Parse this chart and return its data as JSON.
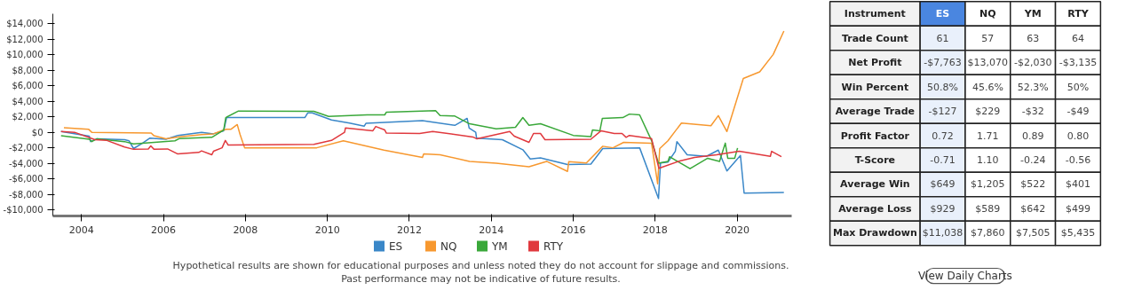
{
  "chart_data": [
    {
      "type": "line",
      "legend": "bottom",
      "grid": false,
      "xlim": [
        2003.3,
        2021.33
      ],
      "ylim": [
        -10800,
        15300
      ],
      "xticks": [
        2004,
        2006,
        2008,
        2010,
        2012,
        2014,
        2016,
        2018,
        2020
      ],
      "yticks": [
        {
          "value": -10000,
          "label": "-$10,000"
        },
        {
          "value": -8000,
          "label": "-$8,000"
        },
        {
          "value": -6000,
          "label": "-$6,000"
        },
        {
          "value": -4000,
          "label": "-$4,000"
        },
        {
          "value": -2000,
          "label": "-$2,000"
        },
        {
          "value": 0,
          "label": "$0"
        },
        {
          "value": 2000,
          "label": "$2,000"
        },
        {
          "value": 4000,
          "label": "$4,000"
        },
        {
          "value": 6000,
          "label": "$6,000"
        },
        {
          "value": 8000,
          "label": "$8,000"
        },
        {
          "value": 10000,
          "label": "$10,000"
        },
        {
          "value": 12000,
          "label": "$12,000"
        },
        {
          "value": 14000,
          "label": "$14,000"
        }
      ],
      "series": [
        {
          "name": "ES",
          "color": "#3a87c8",
          "x": [
            2003.5,
            2004.19,
            2004.22,
            2004.37,
            2005.05,
            2005.16,
            2005.27,
            2005.49,
            2005.67,
            2006.06,
            2006.35,
            2006.93,
            2007.22,
            2007.47,
            2007.54,
            2009.45,
            2009.52,
            2009.63,
            2010.1,
            2010.54,
            2010.9,
            2010.94,
            2012.32,
            2013.11,
            2013.41,
            2013.46,
            2013.62,
            2013.64,
            2014.27,
            2014.77,
            2014.95,
            2015.2,
            2015.86,
            2016.43,
            2016.72,
            2017.62,
            2018.08,
            2018.13,
            2018.31,
            2018.49,
            2018.53,
            2018.78,
            2019.25,
            2019.54,
            2019.75,
            2020.08,
            2020.17,
            2021.14
          ],
          "values": [
            100,
            -500,
            -1200,
            -850,
            -950,
            -1100,
            -2100,
            -1400,
            -750,
            -900,
            -400,
            0,
            -200,
            200,
            1900,
            1900,
            2500,
            2500,
            1600,
            1200,
            800,
            1150,
            1500,
            900,
            1800,
            550,
            0,
            -750,
            -950,
            -2250,
            -3450,
            -3300,
            -4150,
            -4100,
            -2100,
            -2000,
            -8550,
            -3950,
            -3850,
            -2450,
            -1200,
            -2900,
            -3100,
            -2300,
            -5000,
            -3000,
            -7850,
            -7763
          ]
        },
        {
          "name": "NQ",
          "color": "#f7982f",
          "x": [
            2003.57,
            2004.17,
            2004.25,
            2005.7,
            2005.77,
            2006.06,
            2006.35,
            2006.93,
            2007.22,
            2007.47,
            2007.54,
            2007.65,
            2007.8,
            2007.87,
            2007.98,
            2009.74,
            2010.39,
            2011.38,
            2012.32,
            2012.35,
            2012.75,
            2013.47,
            2014.12,
            2014.92,
            2015.35,
            2015.86,
            2015.89,
            2016.32,
            2016.72,
            2016.97,
            2017.23,
            2017.91,
            2018.06,
            2018.11,
            2018.31,
            2018.64,
            2019.36,
            2019.54,
            2019.75,
            2020.15,
            2020.55,
            2020.88,
            2021.14
          ],
          "values": [
            600,
            400,
            0,
            -100,
            -450,
            -850,
            -600,
            -300,
            -200,
            300,
            400,
            400,
            1000,
            -300,
            -2000,
            -2000,
            -1100,
            -2300,
            -3250,
            -2800,
            -2900,
            -3750,
            -4000,
            -4450,
            -3750,
            -5050,
            -3800,
            -3950,
            -1800,
            -2000,
            -1300,
            -1400,
            -6650,
            -2100,
            -1100,
            1200,
            850,
            2150,
            100,
            6950,
            7800,
            10050,
            13070
          ]
        },
        {
          "name": "YM",
          "color": "#3aa83a",
          "x": [
            2003.5,
            2004.19,
            2004.25,
            2004.37,
            2005.05,
            2005.27,
            2006.28,
            2006.39,
            2007.18,
            2007.47,
            2007.52,
            2007.83,
            2009.67,
            2010.03,
            2010.97,
            2011.4,
            2011.44,
            2012.64,
            2012.75,
            2013.11,
            2013.47,
            2014.12,
            2014.59,
            2014.77,
            2014.92,
            2015.2,
            2016.0,
            2016.43,
            2016.47,
            2016.65,
            2016.71,
            2017.21,
            2017.37,
            2017.62,
            2017.91,
            2018.08,
            2018.31,
            2018.35,
            2018.85,
            2019.28,
            2019.57,
            2019.62,
            2019.71,
            2019.77,
            2019.94,
            2020.01
          ],
          "values": [
            -450,
            -900,
            -1200,
            -850,
            -1200,
            -1500,
            -1100,
            -800,
            -650,
            300,
            1900,
            2750,
            2700,
            2050,
            2250,
            2250,
            2600,
            2800,
            2150,
            2100,
            1100,
            450,
            650,
            1900,
            900,
            1100,
            -400,
            -550,
            300,
            200,
            1800,
            1900,
            2350,
            2250,
            -1050,
            -4000,
            -3750,
            -3150,
            -4700,
            -3350,
            -3750,
            -2900,
            -1400,
            -3350,
            -3350,
            -2030
          ]
        },
        {
          "name": "RTY",
          "color": "#e0393e",
          "x": [
            2003.5,
            2003.83,
            2004.33,
            2004.62,
            2005.05,
            2005.27,
            2005.63,
            2005.69,
            2005.77,
            2006.1,
            2006.35,
            2006.86,
            2006.93,
            2007.18,
            2007.22,
            2007.43,
            2007.51,
            2007.58,
            2009.67,
            2010.1,
            2010.42,
            2010.44,
            2011.11,
            2011.18,
            2011.4,
            2011.44,
            2012.25,
            2012.57,
            2013.55,
            2013.65,
            2014.45,
            2014.56,
            2014.92,
            2015.03,
            2015.2,
            2015.31,
            2016.43,
            2016.68,
            2017.0,
            2017.19,
            2017.29,
            2017.37,
            2017.91,
            2018.09,
            2018.6,
            2018.96,
            2019.5,
            2020.05,
            2020.81,
            2020.84,
            2021.08
          ],
          "values": [
            100,
            0,
            -950,
            -1050,
            -1900,
            -2200,
            -2150,
            -1750,
            -2200,
            -2150,
            -2800,
            -2600,
            -2400,
            -2900,
            -2450,
            -2000,
            -1050,
            -1650,
            -1550,
            -1050,
            0,
            550,
            200,
            750,
            300,
            -100,
            -150,
            100,
            -600,
            -850,
            100,
            -500,
            -1300,
            -150,
            -150,
            -950,
            -900,
            200,
            -150,
            -150,
            -650,
            -400,
            -800,
            -4650,
            -3700,
            -3250,
            -2900,
            -2450,
            -3100,
            -2450,
            -3135
          ]
        }
      ],
      "annotations": [
        "Hypothetical results are shown for educational purposes and unless noted they do not account for slippage and commissions.",
        "Past performance may not be indicative of future results."
      ]
    },
    {
      "type": "other",
      "ylabel": "Instrument",
      "categories": [
        "ES",
        "NQ",
        "YM",
        "RTY"
      ],
      "colors": [
        "#4a86e0",
        "#ffffff",
        "#ffffff",
        "#ffffff"
      ],
      "y_categories": [
        "Trade Count",
        "Net Profit",
        "Win Percent",
        "Average Trade",
        "Profit Factor",
        "T-Score",
        "Average Win",
        "Average Loss",
        "Max Drawdown"
      ],
      "cell_labels": [
        [
          "61",
          "57",
          "63",
          "64"
        ],
        [
          "-$7,763",
          "$13,070",
          "-$2,030",
          "-$3,135"
        ],
        [
          "50.8%",
          "45.6%",
          "52.3%",
          "50%"
        ],
        [
          "-$127",
          "$229",
          "-$32",
          "-$49"
        ],
        [
          "0.72",
          "1.71",
          "0.89",
          "0.80"
        ],
        [
          "-0.71",
          "1.10",
          "-0.24",
          "-0.56"
        ],
        [
          "$649",
          "$1,205",
          "$522",
          "$401"
        ],
        [
          "$929",
          "$589",
          "$642",
          "$499"
        ],
        [
          "$11,038",
          "$7,860",
          "$7,505",
          "$5,435"
        ]
      ],
      "annotations": [
        "View Daily Charts"
      ]
    }
  ]
}
